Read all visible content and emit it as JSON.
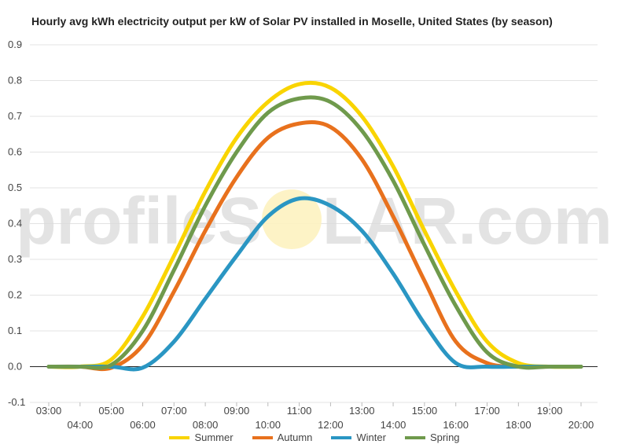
{
  "title": "Hourly avg kWh electricity output per kW of Solar PV installed in Moselle, United States (by season)",
  "watermark": {
    "left": "profileS",
    "right": "LAR.com"
  },
  "chart_data": {
    "type": "line",
    "title": "Hourly avg kWh electricity output per kW of Solar PV installed in Moselle, United States (by season)",
    "xlabel": "",
    "ylabel": "",
    "ylim": [
      -0.1,
      0.9
    ],
    "yticks": [
      "-0.1",
      "0.0",
      "0.1",
      "0.2",
      "0.3",
      "0.4",
      "0.5",
      "0.6",
      "0.7",
      "0.8",
      "0.9"
    ],
    "x": [
      "03:00",
      "04:00",
      "05:00",
      "06:00",
      "07:00",
      "08:00",
      "09:00",
      "10:00",
      "11:00",
      "12:00",
      "13:00",
      "14:00",
      "15:00",
      "16:00",
      "17:00",
      "18:00",
      "19:00",
      "20:00"
    ],
    "grid": true,
    "legend_position": "bottom",
    "series": [
      {
        "name": "Summer",
        "color": "#f9d400",
        "values": [
          0.0,
          0.0,
          0.02,
          0.14,
          0.31,
          0.49,
          0.64,
          0.74,
          0.79,
          0.78,
          0.7,
          0.56,
          0.38,
          0.21,
          0.07,
          0.01,
          0.0,
          0.0
        ]
      },
      {
        "name": "Autumn",
        "color": "#e8711d",
        "values": [
          0.0,
          0.0,
          -0.003,
          0.06,
          0.21,
          0.38,
          0.53,
          0.64,
          0.68,
          0.67,
          0.58,
          0.42,
          0.24,
          0.07,
          0.01,
          0.0,
          0.0,
          0.0
        ]
      },
      {
        "name": "Winter",
        "color": "#2a96c3",
        "values": [
          0.0,
          0.0,
          0.0,
          -0.003,
          0.07,
          0.19,
          0.31,
          0.42,
          0.47,
          0.45,
          0.38,
          0.26,
          0.12,
          0.01,
          0.0,
          0.0,
          0.0,
          0.0
        ]
      },
      {
        "name": "Spring",
        "color": "#6f9a4c",
        "values": [
          0.0,
          0.0,
          0.005,
          0.1,
          0.27,
          0.45,
          0.6,
          0.71,
          0.75,
          0.74,
          0.66,
          0.52,
          0.34,
          0.17,
          0.04,
          0.0,
          0.0,
          0.0
        ]
      }
    ]
  }
}
